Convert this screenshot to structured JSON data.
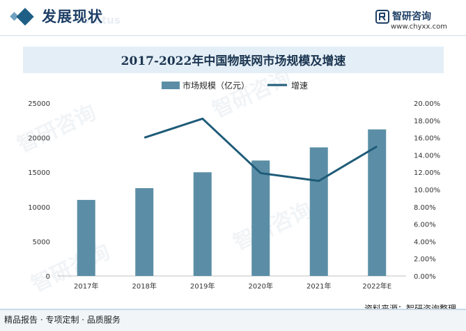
{
  "header": {
    "title": "发展现状",
    "ghost_text": "Status",
    "brand_name": "智研咨询",
    "brand_url": "www.chyxx.com"
  },
  "watermark_text": "智研咨询",
  "chart_data": {
    "type": "bar",
    "title": "2017-2022年中国物联网市场规模及增速",
    "categories": [
      "2017年",
      "2018年",
      "2019年",
      "2020年",
      "2021年",
      "2022年E"
    ],
    "series": [
      {
        "name": "市场规模（亿元）",
        "type": "bar",
        "axis": "left",
        "values": [
          11000,
          12700,
          15000,
          16700,
          18600,
          21200
        ],
        "color": "#5b8ea6"
      },
      {
        "name": "增速",
        "type": "line",
        "axis": "right",
        "values": [
          null,
          16.0,
          18.2,
          11.9,
          11.0,
          15.0
        ],
        "color": "#1e5b78"
      }
    ],
    "left_axis": {
      "range": [
        0,
        25000
      ],
      "ticks": [
        "0",
        "5000",
        "10000",
        "15000",
        "20000",
        "25000"
      ]
    },
    "right_axis": {
      "range": [
        0,
        20
      ],
      "ticks": [
        "0.00%",
        "2.00%",
        "4.00%",
        "6.00%",
        "8.00%",
        "10.00%",
        "12.00%",
        "14.00%",
        "16.00%",
        "18.00%",
        "20.00%"
      ]
    },
    "grid": false,
    "legend": "top-center"
  },
  "footer": {
    "left": "精品报告 · 专项定制 · 品质服务",
    "source": "资料来源：智研咨询整理"
  }
}
